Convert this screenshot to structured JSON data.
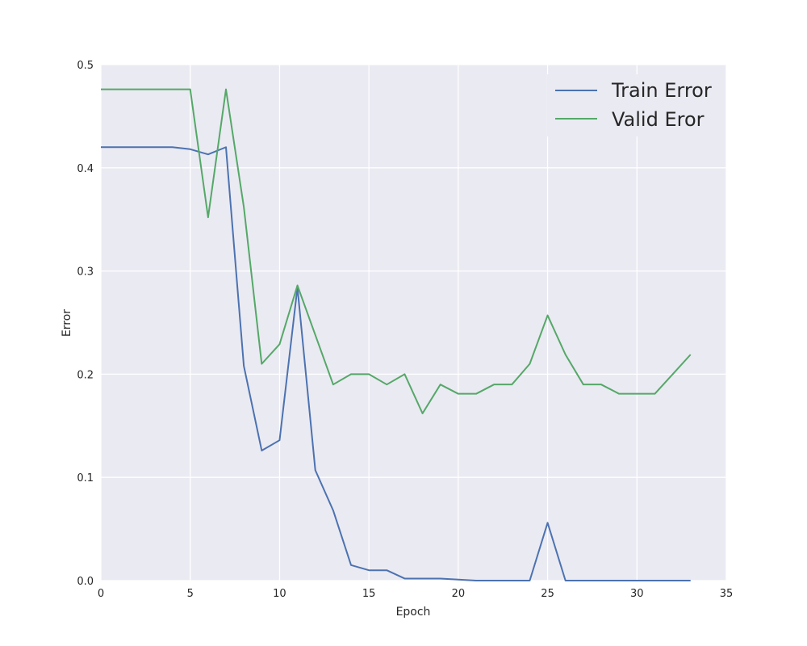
{
  "chart_data": {
    "type": "line",
    "title": "",
    "xlabel": "Epoch",
    "ylabel": "Error",
    "xlim": [
      0,
      35
    ],
    "ylim": [
      0,
      0.5
    ],
    "xticks": [
      0,
      5,
      10,
      15,
      20,
      25,
      30,
      35
    ],
    "yticks": [
      0.0,
      0.1,
      0.2,
      0.3,
      0.4,
      0.5
    ],
    "xtick_labels": [
      "0",
      "5",
      "10",
      "15",
      "20",
      "25",
      "30",
      "35"
    ],
    "ytick_labels": [
      "0.0",
      "0.1",
      "0.2",
      "0.3",
      "0.4",
      "0.5"
    ],
    "grid": true,
    "legend_position": "top-right",
    "background_color": "#eaeaf2",
    "grid_color": "#ffffff",
    "x": [
      0,
      1,
      2,
      3,
      4,
      5,
      6,
      7,
      8,
      9,
      10,
      11,
      12,
      13,
      14,
      15,
      16,
      17,
      18,
      19,
      20,
      21,
      22,
      23,
      24,
      25,
      26,
      27,
      28,
      29,
      30,
      31,
      32,
      33
    ],
    "series": [
      {
        "name": "Train Error",
        "color": "#4c72b0",
        "values": [
          0.42,
          0.42,
          0.42,
          0.42,
          0.42,
          0.418,
          0.413,
          0.42,
          0.208,
          0.126,
          0.136,
          0.284,
          0.107,
          0.068,
          0.015,
          0.01,
          0.01,
          0.002,
          0.002,
          0.002,
          0.001,
          0.0,
          0.0,
          0.0,
          0.0,
          0.056,
          0.0,
          0.0,
          0.0,
          0.0,
          0.0,
          0.0,
          0.0,
          0.0
        ]
      },
      {
        "name": "Valid Eror",
        "color": "#55a868",
        "values": [
          0.476,
          0.476,
          0.476,
          0.476,
          0.476,
          0.476,
          0.352,
          0.476,
          0.362,
          0.21,
          0.229,
          0.286,
          0.238,
          0.19,
          0.2,
          0.2,
          0.19,
          0.2,
          0.162,
          0.19,
          0.181,
          0.181,
          0.19,
          0.19,
          0.21,
          0.257,
          0.219,
          0.19,
          0.19,
          0.181,
          0.181,
          0.181,
          0.2,
          0.219
        ]
      }
    ]
  }
}
